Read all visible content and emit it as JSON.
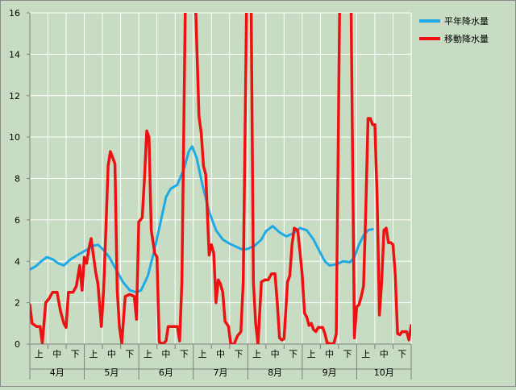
{
  "chart_data": {
    "type": "line",
    "ylim": [
      0,
      16
    ],
    "yticks": [
      0,
      2,
      4,
      6,
      8,
      10,
      12,
      14,
      16
    ],
    "grid": true,
    "legend_position": "top-right",
    "x_categories": {
      "months": [
        "4月",
        "5月",
        "6月",
        "7月",
        "8月",
        "9月",
        "10月"
      ],
      "periods": [
        "上",
        "中",
        "下"
      ]
    },
    "x_index_range": [
      0,
      209
    ],
    "series": [
      {
        "name": "平年降水量",
        "color": "#1eaae6",
        "points": [
          [
            0,
            3.6
          ],
          [
            5,
            3.75
          ],
          [
            10,
            4.0
          ],
          [
            15,
            4.2
          ],
          [
            20,
            4.1
          ],
          [
            25,
            3.9
          ],
          [
            30,
            3.8
          ],
          [
            36,
            4.1
          ],
          [
            42,
            4.3
          ],
          [
            50,
            4.55
          ],
          [
            56,
            4.75
          ],
          [
            60,
            4.8
          ],
          [
            64,
            4.6
          ],
          [
            70,
            4.2
          ],
          [
            76,
            3.6
          ],
          [
            82,
            3.0
          ],
          [
            88,
            2.6
          ],
          [
            94,
            2.5
          ],
          [
            98,
            2.6
          ],
          [
            104,
            3.3
          ],
          [
            110,
            4.6
          ],
          [
            116,
            6.1
          ],
          [
            120,
            7.1
          ],
          [
            124,
            7.5
          ],
          [
            130,
            7.7
          ],
          [
            136,
            8.5
          ],
          [
            140,
            9.3
          ],
          [
            143,
            9.55
          ],
          [
            147,
            9.0
          ],
          [
            152,
            7.7
          ],
          [
            158,
            6.4
          ],
          [
            164,
            5.5
          ],
          [
            170,
            5.05
          ],
          [
            176,
            4.85
          ],
          [
            182,
            4.7
          ],
          [
            188,
            4.55
          ],
          [
            192,
            4.6
          ],
          [
            198,
            4.75
          ],
          [
            204,
            5.05
          ],
          [
            208,
            5.45
          ],
          [
            214,
            5.7
          ],
          [
            220,
            5.4
          ],
          [
            226,
            5.2
          ],
          [
            232,
            5.35
          ],
          [
            238,
            5.6
          ],
          [
            244,
            5.5
          ],
          [
            250,
            5.05
          ],
          [
            256,
            4.4
          ],
          [
            260,
            4.0
          ],
          [
            264,
            3.8
          ],
          [
            270,
            3.85
          ],
          [
            276,
            4.0
          ],
          [
            282,
            3.95
          ],
          [
            286,
            4.2
          ],
          [
            290,
            4.8
          ],
          [
            294,
            5.25
          ],
          [
            298,
            5.5
          ],
          [
            302,
            5.55
          ]
        ]
      },
      {
        "name": "移動降水量",
        "color": "#ee1111",
        "points": [
          [
            0,
            1.9
          ],
          [
            2,
            1.0
          ],
          [
            6,
            0.85
          ],
          [
            9,
            0.85
          ],
          [
            11,
            0.05
          ],
          [
            14,
            2.0
          ],
          [
            17,
            2.2
          ],
          [
            20,
            2.5
          ],
          [
            24,
            2.5
          ],
          [
            27,
            1.6
          ],
          [
            30,
            1.0
          ],
          [
            32,
            0.8
          ],
          [
            34,
            2.5
          ],
          [
            38,
            2.5
          ],
          [
            41,
            2.8
          ],
          [
            44,
            3.8
          ],
          [
            46,
            2.6
          ],
          [
            48,
            4.2
          ],
          [
            50,
            3.9
          ],
          [
            52,
            4.6
          ],
          [
            54,
            5.1
          ],
          [
            56,
            4.3
          ],
          [
            58,
            3.5
          ],
          [
            60,
            2.9
          ],
          [
            63,
            0.85
          ],
          [
            65,
            2.6
          ],
          [
            67,
            5.5
          ],
          [
            69,
            8.6
          ],
          [
            71,
            9.3
          ],
          [
            73,
            9.0
          ],
          [
            75,
            8.7
          ],
          [
            77,
            2.6
          ],
          [
            79,
            0.8
          ],
          [
            81,
            0.05
          ],
          [
            84,
            2.3
          ],
          [
            88,
            2.4
          ],
          [
            92,
            2.3
          ],
          [
            94,
            1.2
          ],
          [
            96,
            5.9
          ],
          [
            99,
            6.1
          ],
          [
            101,
            8.0
          ],
          [
            103,
            10.3
          ],
          [
            105,
            10.0
          ],
          [
            107,
            5.5
          ],
          [
            110,
            4.4
          ],
          [
            112,
            4.2
          ],
          [
            114,
            0.1
          ],
          [
            117,
            0.0
          ],
          [
            120,
            0.15
          ],
          [
            122,
            0.85
          ],
          [
            126,
            0.85
          ],
          [
            130,
            0.85
          ],
          [
            132,
            0.15
          ],
          [
            134,
            3.0
          ],
          [
            137,
            16.5
          ],
          [
            146,
            16.5
          ],
          [
            149,
            11.0
          ],
          [
            151,
            10.2
          ],
          [
            153,
            8.6
          ],
          [
            155,
            8.2
          ],
          [
            158,
            4.3
          ],
          [
            160,
            4.8
          ],
          [
            162,
            4.4
          ],
          [
            164,
            2.0
          ],
          [
            166,
            3.1
          ],
          [
            168,
            2.9
          ],
          [
            170,
            2.5
          ],
          [
            172,
            1.1
          ],
          [
            175,
            0.85
          ],
          [
            177,
            0.0
          ],
          [
            180,
            0.0
          ],
          [
            183,
            0.4
          ],
          [
            186,
            0.6
          ],
          [
            188,
            3.0
          ],
          [
            191,
            16.5
          ],
          [
            195,
            16.5
          ],
          [
            197,
            3.0
          ],
          [
            199,
            1.0
          ],
          [
            201,
            0.0
          ],
          [
            204,
            3.0
          ],
          [
            207,
            3.1
          ],
          [
            210,
            3.1
          ],
          [
            213,
            3.4
          ],
          [
            216,
            3.4
          ],
          [
            218,
            2.0
          ],
          [
            220,
            0.3
          ],
          [
            222,
            0.2
          ],
          [
            224,
            0.25
          ],
          [
            227,
            3.0
          ],
          [
            229,
            3.3
          ],
          [
            231,
            4.8
          ],
          [
            233,
            5.6
          ],
          [
            236,
            5.5
          ],
          [
            238,
            4.5
          ],
          [
            240,
            3.3
          ],
          [
            242,
            1.5
          ],
          [
            244,
            1.3
          ],
          [
            246,
            0.9
          ],
          [
            248,
            1.0
          ],
          [
            250,
            0.7
          ],
          [
            252,
            0.6
          ],
          [
            254,
            0.8
          ],
          [
            258,
            0.8
          ],
          [
            260,
            0.5
          ],
          [
            262,
            0.05
          ],
          [
            266,
            0.0
          ],
          [
            268,
            0.05
          ],
          [
            270,
            0.5
          ],
          [
            273,
            16.5
          ],
          [
            283,
            16.5
          ],
          [
            286,
            0.3
          ],
          [
            288,
            1.8
          ],
          [
            290,
            1.9
          ],
          [
            292,
            2.3
          ],
          [
            294,
            2.8
          ],
          [
            296,
            6.5
          ],
          [
            298,
            10.9
          ],
          [
            300,
            10.9
          ],
          [
            302,
            10.6
          ],
          [
            304,
            10.6
          ],
          [
            306,
            7.0
          ],
          [
            308,
            1.4
          ],
          [
            310,
            3.0
          ],
          [
            312,
            5.5
          ],
          [
            314,
            5.6
          ],
          [
            316,
            4.9
          ],
          [
            318,
            4.9
          ],
          [
            320,
            4.8
          ],
          [
            322,
            3.3
          ],
          [
            324,
            0.5
          ],
          [
            326,
            0.45
          ],
          [
            328,
            0.6
          ],
          [
            332,
            0.6
          ],
          [
            334,
            0.2
          ],
          [
            336,
            0.9
          ]
        ]
      }
    ]
  }
}
